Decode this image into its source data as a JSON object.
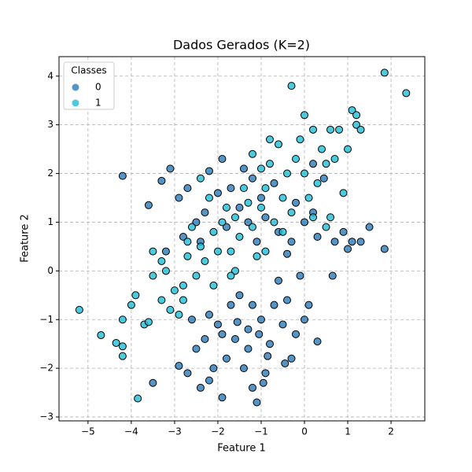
{
  "chart_data": {
    "type": "scatter",
    "title": "Dados Gerados (K=2)",
    "x_label": "Feature 1",
    "y_label": "Feature 2",
    "legend_title": "Classes",
    "legend_position": "upper left",
    "grid": true,
    "xlim": [
      -5.67,
      2.78
    ],
    "ylim": [
      -3.08,
      4.4
    ],
    "xticks": [
      {
        "value": -5,
        "label": "−5"
      },
      {
        "value": -4,
        "label": "−4"
      },
      {
        "value": -3,
        "label": "−3"
      },
      {
        "value": -2,
        "label": "−2"
      },
      {
        "value": -1,
        "label": "−1"
      },
      0,
      1,
      2
    ],
    "yticks": [
      {
        "value": -3,
        "label": "−3"
      },
      {
        "value": -2,
        "label": "−2"
      },
      {
        "value": -1,
        "label": "−1"
      },
      0,
      1,
      2,
      3,
      4
    ],
    "series": [
      {
        "name": "0",
        "color": "#2a7ab8",
        "x": [
          -1.3,
          -1.0,
          -1.6,
          -0.8,
          -2.0,
          -1.2,
          -0.5,
          -1.8,
          -1.4,
          -0.9,
          -2.3,
          -2.2,
          -0.4,
          -1.1,
          -0.95,
          -2.4,
          -1.9,
          -2.9,
          -2.7,
          -0.3,
          0.3,
          0.1,
          -0.6,
          -0.1,
          -1.5,
          -2.5,
          -1.7,
          -0.7,
          -1.3,
          -2.1,
          -1.05,
          -0.2,
          -0.45,
          -2.6,
          -1.55,
          -0.85,
          0.0,
          -1.9,
          -1.2,
          0.65,
          -3.5,
          -2.2,
          -1.5,
          -2.0,
          -2.3,
          -1.0,
          -1.8,
          -0.6,
          -2.5,
          -1.2,
          -2.7,
          -3.1,
          -3.3,
          -0.3,
          0.0,
          0.3,
          0.7,
          1.1,
          1.5,
          1.85,
          -4.2,
          -3.6,
          -2.9,
          -1.4,
          -0.9,
          -0.2,
          0.2,
          -1.7,
          -2.2,
          -0.4,
          1.0,
          0.45,
          -2.8,
          -1.1,
          -3.2,
          0.9,
          -0.7,
          -1.9,
          0.2,
          -2.4,
          -1.3,
          1.3
        ],
        "values": [
          -1.2,
          -1.0,
          -1.4,
          -1.5,
          -1.1,
          -0.7,
          -1.1,
          -1.8,
          -2.0,
          -2.1,
          -1.4,
          -0.9,
          -0.6,
          -2.7,
          -2.3,
          -2.4,
          -2.6,
          -1.95,
          -2.1,
          -1.8,
          -1.45,
          -0.7,
          -0.2,
          -0.1,
          -0.5,
          -1.6,
          -0.7,
          -0.7,
          -1.6,
          -2.0,
          -1.3,
          -1.3,
          -1.9,
          -1.0,
          -1.05,
          -1.75,
          -1.0,
          -1.3,
          -2.4,
          -0.1,
          -2.3,
          -2.25,
          1.3,
          1.6,
          1.2,
          1.5,
          0.9,
          0.8,
          1.0,
          1.9,
          1.7,
          2.1,
          1.85,
          0.6,
          1.0,
          0.7,
          0.6,
          0.6,
          0.9,
          0.45,
          1.95,
          1.35,
          1.5,
          2.1,
          1.1,
          1.4,
          1.2,
          1.7,
          2.05,
          0.35,
          0.45,
          1.9,
          0.7,
          0.6,
          0.4,
          0.8,
          1.8,
          2.3,
          2.2,
          0.6,
          1.0,
          0.6
        ]
      },
      {
        "name": "1",
        "color": "#1fbdd6",
        "x": [
          -5.2,
          -4.7,
          -4.35,
          -4.2,
          -4.2,
          -3.85,
          -4.2,
          -4.0,
          -3.9,
          -3.7,
          -3.6,
          -3.5,
          -3.5,
          -3.3,
          -3.2,
          -3.0,
          -3.1,
          -2.9,
          -2.8,
          -2.7,
          -2.5,
          -2.4,
          -2.6,
          -2.3,
          -2.1,
          -2.0,
          -1.9,
          -1.7,
          -1.6,
          -1.5,
          -1.3,
          -1.2,
          -1.0,
          -0.9,
          -0.8,
          -0.7,
          -0.6,
          -0.5,
          -0.4,
          -0.3,
          -0.2,
          0.0,
          0.0,
          0.1,
          0.2,
          0.3,
          0.4,
          0.5,
          0.6,
          0.7,
          0.8,
          0.9,
          1.0,
          1.1,
          1.2,
          1.3,
          1.2,
          1.85,
          2.35,
          -0.8,
          -0.3,
          -1.0,
          -1.4,
          -1.8,
          -2.2,
          -2.7,
          -3.3,
          -1.1,
          -1.6,
          -2.1,
          -2.8,
          -0.5,
          0.2,
          0.5,
          -1.7,
          -0.9,
          -2.4,
          -1.2,
          0.6,
          -0.1
        ],
        "values": [
          -0.8,
          -1.32,
          -1.48,
          -1.55,
          -1.75,
          -2.62,
          -1.0,
          -0.7,
          -0.5,
          -1.1,
          -1.05,
          -0.1,
          0.4,
          -0.6,
          0.0,
          -0.4,
          -0.8,
          -0.9,
          -0.3,
          0.3,
          -0.1,
          0.5,
          0.9,
          0.2,
          0.8,
          0.4,
          1.0,
          0.4,
          1.1,
          0.7,
          1.4,
          0.9,
          1.3,
          1.7,
          2.2,
          1.0,
          2.6,
          1.5,
          2.0,
          1.2,
          2.3,
          2.0,
          3.2,
          1.5,
          2.9,
          1.8,
          2.5,
          2.2,
          2.9,
          2.3,
          2.9,
          1.6,
          2.5,
          3.3,
          3.0,
          2.9,
          3.2,
          4.07,
          3.65,
          2.7,
          3.8,
          2.1,
          1.7,
          1.3,
          1.5,
          0.6,
          0.2,
          0.3,
          0.0,
          -0.3,
          -0.6,
          0.8,
          1.1,
          0.9,
          -0.1,
          0.4,
          1.9,
          2.4,
          1.1,
          2.7
        ]
      }
    ]
  }
}
